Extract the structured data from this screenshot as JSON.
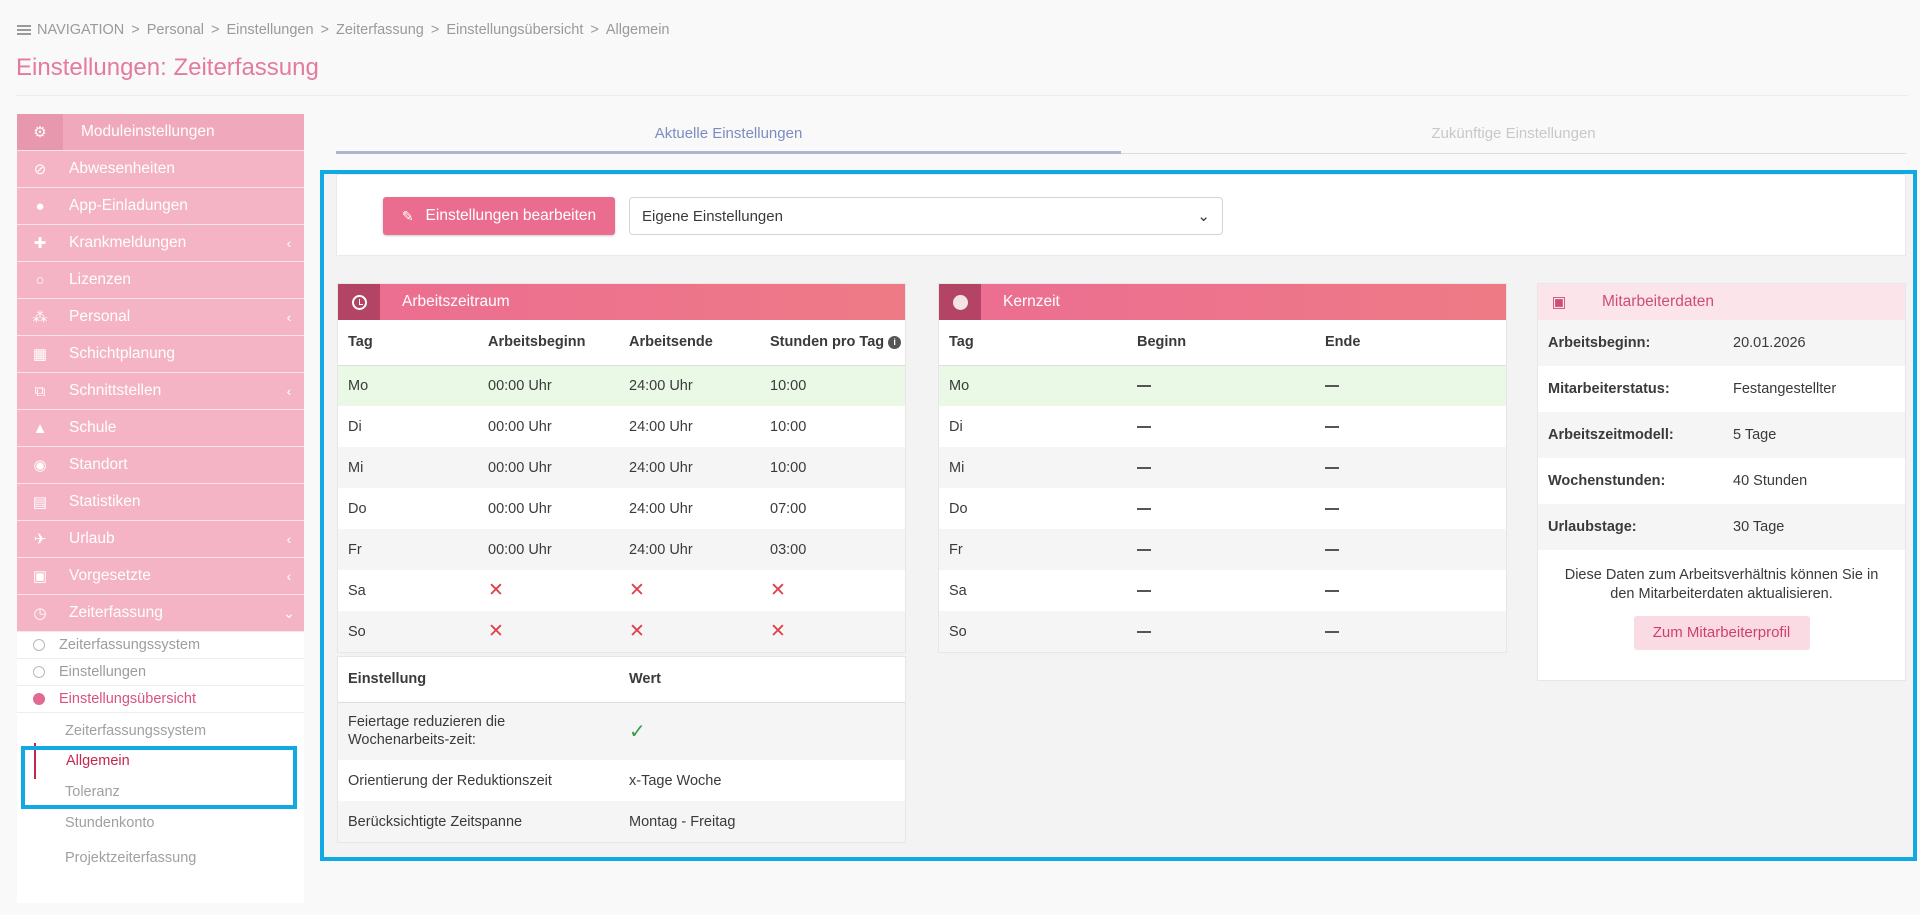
{
  "breadcrumb": {
    "items": [
      "NAVIGATION",
      "Personal",
      "Einstellungen",
      "Zeiterfassung",
      "Einstellungsübersicht",
      "Allgemein"
    ],
    "separator": ">"
  },
  "page_title": "Einstellungen: Zeiterfassung",
  "sidebar": {
    "header": {
      "label": "Moduleinstellungen",
      "icon": "gear-icon"
    },
    "items": [
      {
        "label": "Abwesenheiten",
        "icon": "cancel-icon",
        "chevron": ""
      },
      {
        "label": "App-Einladungen",
        "icon": "person-icon",
        "chevron": ""
      },
      {
        "label": "Krankmeldungen",
        "icon": "medical-icon",
        "chevron": "‹"
      },
      {
        "label": "Lizenzen",
        "icon": "circle-icon",
        "chevron": ""
      },
      {
        "label": "Personal",
        "icon": "group-icon",
        "chevron": "‹"
      },
      {
        "label": "Schichtplanung",
        "icon": "calendar-icon",
        "chevron": ""
      },
      {
        "label": "Schnittstellen",
        "icon": "network-icon",
        "chevron": "‹"
      },
      {
        "label": "Schule",
        "icon": "school-icon",
        "chevron": ""
      },
      {
        "label": "Standort",
        "icon": "location-icon",
        "chevron": ""
      },
      {
        "label": "Statistiken",
        "icon": "chart-icon",
        "chevron": ""
      },
      {
        "label": "Urlaub",
        "icon": "plane-icon",
        "chevron": "‹"
      },
      {
        "label": "Vorgesetzte",
        "icon": "supervisor-icon",
        "chevron": "‹"
      },
      {
        "label": "Zeiterfassung",
        "icon": "clock-icon",
        "chevron": "⌄"
      }
    ],
    "sub_items": [
      "Zeiterfassungssystem",
      "Einstellungen",
      "Einstellungsübersicht"
    ],
    "subsub_items": [
      "Zeiterfassungssystem",
      "Allgemein",
      "Toleranz",
      "Stundenkonto",
      "Projektzeiterfassung"
    ]
  },
  "tabs": [
    "Aktuelle Einstellungen",
    "Zukünftige Einstellungen"
  ],
  "toolbar": {
    "edit_label": "Einstellungen bearbeiten",
    "select_value": "Eigene Einstellungen"
  },
  "arbeitszeitraum": {
    "title": "Arbeitszeitraum",
    "columns": [
      "Tag",
      "Arbeitsbeginn",
      "Arbeitsende",
      "Stunden pro Tag"
    ],
    "rows": [
      [
        "Mo",
        "00:00 Uhr",
        "24:00 Uhr",
        "10:00"
      ],
      [
        "Di",
        "00:00 Uhr",
        "24:00 Uhr",
        "10:00"
      ],
      [
        "Mi",
        "00:00 Uhr",
        "24:00 Uhr",
        "10:00"
      ],
      [
        "Do",
        "00:00 Uhr",
        "24:00 Uhr",
        "07:00"
      ],
      [
        "Fr",
        "00:00 Uhr",
        "24:00 Uhr",
        "03:00"
      ],
      [
        "Sa",
        "✕",
        "✕",
        "✕"
      ],
      [
        "So",
        "✕",
        "✕",
        "✕"
      ]
    ]
  },
  "settings_table": {
    "columns": [
      "Einstellung",
      "Wert"
    ],
    "rows": [
      {
        "label": "Feiertage reduzieren die Wochenarbeits-zeit:",
        "value": "✓"
      },
      {
        "label": "Orientierung der Reduktionszeit",
        "value": "x-Tage Woche"
      },
      {
        "label": "Berücksichtigte Zeitspanne",
        "value": "Montag - Freitag"
      }
    ]
  },
  "kernzeit": {
    "title": "Kernzeit",
    "columns": [
      "Tag",
      "Beginn",
      "Ende"
    ],
    "days": [
      "Mo",
      "Di",
      "Mi",
      "Do",
      "Fr",
      "Sa",
      "So"
    ]
  },
  "mitarbeiterdaten": {
    "title": "Mitarbeiterdaten",
    "rows": [
      {
        "k": "Arbeitsbeginn:",
        "v": "20.01.2026"
      },
      {
        "k": "Mitarbeiterstatus:",
        "v": "Festangestellter"
      },
      {
        "k": "Arbeitszeitmodell:",
        "v": "5 Tage"
      },
      {
        "k": "Wochenstunden:",
        "v": "40 Stunden"
      },
      {
        "k": "Urlaubstage:",
        "v": "30 Tage"
      }
    ],
    "info_text": "Diese Daten zum Arbeitsverhältnis können Sie in den Mitarbeiterdaten aktualisieren.",
    "button_label": "Zum Mitarbeiterprofil"
  },
  "colors": {
    "accent": "#ea6d8f",
    "highlight": "#10a9e3",
    "today": "#e9f9e6"
  }
}
